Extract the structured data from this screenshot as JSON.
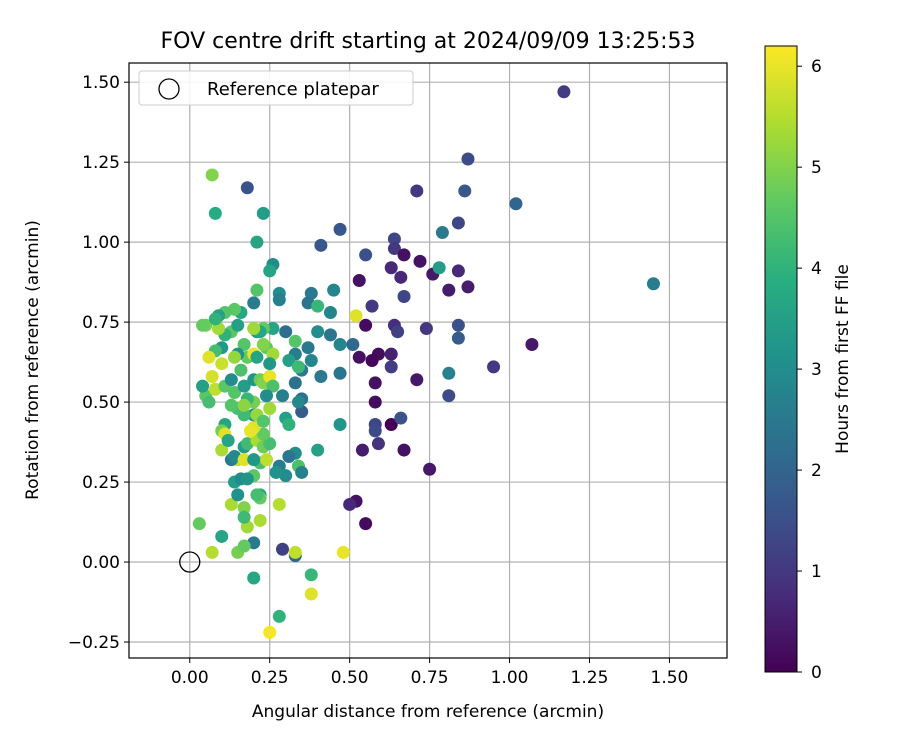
{
  "chart_data": {
    "type": "scatter",
    "title": "FOV centre drift starting at 2024/09/09 13:25:53",
    "xlabel": "Angular distance from reference (arcmin)",
    "ylabel": "Rotation from reference (arcmin)",
    "xlim": [
      -0.19,
      1.68
    ],
    "ylim": [
      -0.3,
      1.56
    ],
    "xticks": [
      0.0,
      0.25,
      0.5,
      0.75,
      1.0,
      1.25,
      1.5
    ],
    "xtick_labels": [
      "0.00",
      "0.25",
      "0.50",
      "0.75",
      "1.00",
      "1.25",
      "1.50"
    ],
    "yticks": [
      -0.25,
      0.0,
      0.25,
      0.5,
      0.75,
      1.0,
      1.25,
      1.5
    ],
    "ytick_labels": [
      "−0.25",
      "0.00",
      "0.25",
      "0.50",
      "0.75",
      "1.00",
      "1.25",
      "1.50"
    ],
    "grid": true,
    "legend": {
      "position": "upper-left",
      "entries": [
        "Reference platepar"
      ]
    },
    "reference_point": {
      "x": 0.0,
      "y": 0.0,
      "label": "Reference platepar"
    },
    "colorbar": {
      "label": "Hours from first FF file",
      "range": [
        0,
        6.2
      ],
      "ticks": [
        0,
        1,
        2,
        3,
        4,
        5,
        6
      ],
      "tick_labels": [
        "0",
        "1",
        "2",
        "3",
        "4",
        "5",
        "6"
      ],
      "colormap": "viridis"
    },
    "points": [
      [
        1.17,
        1.47,
        1.1
      ],
      [
        0.87,
        1.26,
        1.4
      ],
      [
        0.86,
        1.16,
        1.7
      ],
      [
        1.02,
        1.12,
        2.0
      ],
      [
        0.71,
        1.16,
        1.0
      ],
      [
        0.84,
        1.06,
        1.3
      ],
      [
        0.79,
        1.03,
        2.5
      ],
      [
        0.64,
        1.01,
        1.3
      ],
      [
        0.64,
        0.98,
        1.0
      ],
      [
        0.67,
        0.96,
        0.3
      ],
      [
        0.72,
        0.94,
        0.3
      ],
      [
        0.55,
        0.96,
        1.5
      ],
      [
        0.63,
        0.92,
        0.7
      ],
      [
        0.76,
        0.9,
        0.4
      ],
      [
        0.84,
        0.91,
        0.7
      ],
      [
        0.78,
        0.92,
        3.4
      ],
      [
        0.66,
        0.89,
        0.7
      ],
      [
        0.53,
        0.88,
        0.3
      ],
      [
        0.81,
        0.85,
        0.5
      ],
      [
        0.87,
        0.86,
        0.5
      ],
      [
        0.67,
        0.83,
        1.3
      ],
      [
        0.57,
        0.8,
        1.0
      ],
      [
        0.45,
        0.85,
        2.8
      ],
      [
        0.38,
        0.84,
        2.5
      ],
      [
        0.28,
        0.84,
        3.0
      ],
      [
        0.41,
        0.99,
        1.7
      ],
      [
        0.47,
        1.04,
        1.7
      ],
      [
        0.18,
        1.17,
        1.6
      ],
      [
        0.07,
        1.21,
        5.0
      ],
      [
        0.08,
        1.09,
        3.8
      ],
      [
        0.23,
        1.09,
        3.4
      ],
      [
        0.21,
        1.0,
        3.6
      ],
      [
        0.26,
        0.93,
        3.0
      ],
      [
        0.25,
        0.91,
        3.6
      ],
      [
        0.21,
        0.85,
        4.5
      ],
      [
        0.2,
        0.81,
        2.6
      ],
      [
        0.28,
        0.82,
        2.7
      ],
      [
        0.37,
        0.81,
        2.4
      ],
      [
        0.4,
        0.8,
        4.1
      ],
      [
        0.44,
        0.78,
        2.8
      ],
      [
        0.4,
        0.72,
        3.0
      ],
      [
        0.44,
        0.71,
        2.4
      ],
      [
        0.52,
        0.77,
        5.9
      ],
      [
        0.55,
        0.74,
        0.2
      ],
      [
        0.64,
        0.74,
        0.8
      ],
      [
        0.65,
        0.72,
        1.2
      ],
      [
        0.74,
        0.73,
        1.0
      ],
      [
        0.84,
        0.74,
        1.5
      ],
      [
        0.84,
        0.7,
        1.8
      ],
      [
        1.07,
        0.68,
        0.4
      ],
      [
        0.95,
        0.61,
        1.0
      ],
      [
        0.81,
        0.59,
        2.7
      ],
      [
        0.81,
        0.52,
        1.4
      ],
      [
        0.71,
        0.57,
        0.4
      ],
      [
        0.63,
        0.65,
        0.6
      ],
      [
        0.63,
        0.61,
        1.1
      ],
      [
        0.59,
        0.65,
        0.2
      ],
      [
        0.57,
        0.63,
        0.1
      ],
      [
        0.53,
        0.64,
        0.3
      ],
      [
        0.51,
        0.68,
        2.1
      ],
      [
        0.58,
        0.56,
        0.3
      ],
      [
        0.58,
        0.5,
        0.2
      ],
      [
        0.58,
        0.43,
        1.3
      ],
      [
        0.58,
        0.41,
        1.4
      ],
      [
        0.54,
        0.35,
        0.5
      ],
      [
        0.59,
        0.37,
        0.9
      ],
      [
        0.63,
        0.43,
        0.0
      ],
      [
        0.66,
        0.45,
        1.6
      ],
      [
        0.67,
        0.35,
        0.3
      ],
      [
        0.75,
        0.29,
        0.4
      ],
      [
        0.52,
        0.19,
        0.3
      ],
      [
        0.5,
        0.18,
        0.7
      ],
      [
        0.55,
        0.12,
        0.2
      ],
      [
        0.47,
        0.59,
        2.4
      ],
      [
        0.47,
        0.43,
        3.2
      ],
      [
        0.4,
        0.35,
        3.5
      ],
      [
        0.41,
        0.58,
        2.5
      ],
      [
        0.37,
        0.67,
        2.5
      ],
      [
        0.38,
        0.63,
        2.8
      ],
      [
        0.35,
        0.6,
        2.5
      ],
      [
        0.35,
        0.51,
        2.3
      ],
      [
        0.35,
        0.47,
        1.8
      ],
      [
        0.33,
        0.56,
        2.3
      ],
      [
        0.34,
        0.5,
        2.9
      ],
      [
        0.29,
        0.52,
        2.7
      ],
      [
        0.33,
        0.65,
        2.6
      ],
      [
        0.31,
        0.63,
        3.5
      ],
      [
        0.33,
        0.69,
        4.5
      ],
      [
        0.34,
        0.61,
        4.2
      ],
      [
        0.3,
        0.72,
        2.2
      ],
      [
        0.26,
        0.73,
        3.6
      ],
      [
        0.23,
        0.73,
        4.7
      ],
      [
        0.21,
        0.72,
        3.2
      ],
      [
        0.3,
        0.45,
        3.5
      ],
      [
        0.31,
        0.43,
        4.0
      ],
      [
        0.33,
        0.34,
        3.0
      ],
      [
        0.31,
        0.33,
        2.4
      ],
      [
        0.28,
        0.3,
        2.6
      ],
      [
        0.3,
        0.27,
        3.0
      ],
      [
        0.34,
        0.3,
        4.4
      ],
      [
        0.35,
        0.28,
        2.7
      ],
      [
        0.33,
        0.02,
        2.0
      ],
      [
        0.29,
        0.04,
        1.2
      ],
      [
        0.33,
        0.03,
        5.6
      ],
      [
        0.38,
        -0.04,
        4.1
      ],
      [
        0.38,
        -0.1,
        5.9
      ],
      [
        0.48,
        0.03,
        6.0
      ],
      [
        0.28,
        -0.17,
        4.0
      ],
      [
        0.25,
        -0.22,
        6.1
      ],
      [
        0.2,
        -0.05,
        3.7
      ],
      [
        0.2,
        0.06,
        2.5
      ],
      [
        0.15,
        0.03,
        4.9
      ],
      [
        0.17,
        0.05,
        4.7
      ],
      [
        0.07,
        0.03,
        5.5
      ],
      [
        0.03,
        0.12,
        4.7
      ],
      [
        0.1,
        0.08,
        3.6
      ],
      [
        0.13,
        0.18,
        5.4
      ],
      [
        0.17,
        0.17,
        5.0
      ],
      [
        0.18,
        0.11,
        5.3
      ],
      [
        0.17,
        0.14,
        4.2
      ],
      [
        0.22,
        0.13,
        5.4
      ],
      [
        0.22,
        0.21,
        3.6
      ],
      [
        0.22,
        0.2,
        4.7
      ],
      [
        0.28,
        0.18,
        5.5
      ],
      [
        0.2,
        0.27,
        4.6
      ],
      [
        0.15,
        0.21,
        3.1
      ],
      [
        0.14,
        0.25,
        3.4
      ],
      [
        0.16,
        0.26,
        3.0
      ],
      [
        0.18,
        0.26,
        3.2
      ],
      [
        0.15,
        0.32,
        5.6
      ],
      [
        0.13,
        0.32,
        2.5
      ],
      [
        0.14,
        0.33,
        2.9
      ],
      [
        0.17,
        0.36,
        3.4
      ],
      [
        0.18,
        0.37,
        4.2
      ],
      [
        0.17,
        0.32,
        5.9
      ],
      [
        0.21,
        0.38,
        5.4
      ],
      [
        0.23,
        0.36,
        4.8
      ],
      [
        0.25,
        0.37,
        4.3
      ],
      [
        0.22,
        0.31,
        4.4
      ],
      [
        0.24,
        0.32,
        5.6
      ],
      [
        0.23,
        0.4,
        4.7
      ],
      [
        0.2,
        0.42,
        5.9
      ],
      [
        0.19,
        0.41,
        6.0
      ],
      [
        0.2,
        0.46,
        3.1
      ],
      [
        0.21,
        0.46,
        5.2
      ],
      [
        0.2,
        0.5,
        4.9
      ],
      [
        0.17,
        0.46,
        4.2
      ],
      [
        0.15,
        0.48,
        4.3
      ],
      [
        0.13,
        0.49,
        4.5
      ],
      [
        0.11,
        0.43,
        3.7
      ],
      [
        0.1,
        0.41,
        4.9
      ],
      [
        0.11,
        0.4,
        5.9
      ],
      [
        0.1,
        0.35,
        5.4
      ],
      [
        0.12,
        0.38,
        3.6
      ],
      [
        0.05,
        0.52,
        4.6
      ],
      [
        0.06,
        0.5,
        4.3
      ],
      [
        0.04,
        0.55,
        3.5
      ],
      [
        0.08,
        0.54,
        5.6
      ],
      [
        0.07,
        0.58,
        5.8
      ],
      [
        0.11,
        0.55,
        4.6
      ],
      [
        0.13,
        0.57,
        3.0
      ],
      [
        0.14,
        0.53,
        4.5
      ],
      [
        0.17,
        0.55,
        3.4
      ],
      [
        0.18,
        0.51,
        4.1
      ],
      [
        0.17,
        0.49,
        5.1
      ],
      [
        0.2,
        0.57,
        3.2
      ],
      [
        0.22,
        0.57,
        4.8
      ],
      [
        0.23,
        0.56,
        5.0
      ],
      [
        0.25,
        0.58,
        6.0
      ],
      [
        0.26,
        0.55,
        4.4
      ],
      [
        0.24,
        0.52,
        3.0
      ],
      [
        0.25,
        0.48,
        5.3
      ],
      [
        0.23,
        0.44,
        4.5
      ],
      [
        0.16,
        0.6,
        4.4
      ],
      [
        0.18,
        0.64,
        4.7
      ],
      [
        0.2,
        0.65,
        6.0
      ],
      [
        0.21,
        0.64,
        3.6
      ],
      [
        0.24,
        0.67,
        4.6
      ],
      [
        0.26,
        0.65,
        5.3
      ],
      [
        0.23,
        0.68,
        5.0
      ],
      [
        0.25,
        0.62,
        3.3
      ],
      [
        0.22,
        0.72,
        3.7
      ],
      [
        0.2,
        0.73,
        5.3
      ],
      [
        0.17,
        0.68,
        4.5
      ],
      [
        0.15,
        0.65,
        3.1
      ],
      [
        0.14,
        0.64,
        5.2
      ],
      [
        0.13,
        0.72,
        4.6
      ],
      [
        0.15,
        0.74,
        3.5
      ],
      [
        0.16,
        0.78,
        3.7
      ],
      [
        0.14,
        0.79,
        4.6
      ],
      [
        0.11,
        0.78,
        4.5
      ],
      [
        0.11,
        0.71,
        4.0
      ],
      [
        0.1,
        0.67,
        3.3
      ],
      [
        0.1,
        0.62,
        5.7
      ],
      [
        0.08,
        0.66,
        4.3
      ],
      [
        0.06,
        0.64,
        5.9
      ],
      [
        0.09,
        0.77,
        3.5
      ],
      [
        0.09,
        0.73,
        5.3
      ],
      [
        0.05,
        0.74,
        4.9
      ],
      [
        0.04,
        0.74,
        4.7
      ],
      [
        0.08,
        0.76,
        4.0
      ],
      [
        0.27,
        0.28,
        3.1
      ],
      [
        0.21,
        0.21,
        4.3
      ],
      [
        0.2,
        0.32,
        3.3
      ],
      [
        1.45,
        0.87,
        2.6
      ],
      [
        0.47,
        0.68,
        2.8
      ]
    ]
  }
}
